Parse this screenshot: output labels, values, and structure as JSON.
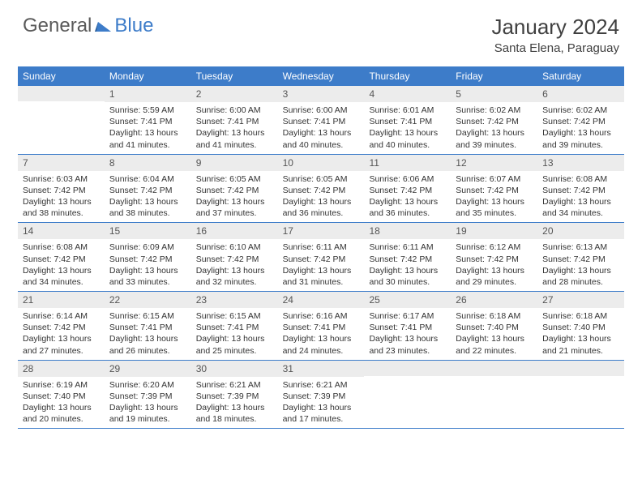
{
  "logo": {
    "text1": "General",
    "text2": "Blue"
  },
  "title": "January 2024",
  "location": "Santa Elena, Paraguay",
  "colors": {
    "header_bg": "#3d7cc9",
    "header_text": "#ffffff",
    "daynum_bg": "#ececec",
    "daynum_text": "#555555",
    "body_text": "#333333",
    "border": "#3d7cc9",
    "page_bg": "#ffffff",
    "logo_gray": "#5a5a5a",
    "logo_blue": "#3d7cc9"
  },
  "typography": {
    "title_fontsize": 26,
    "location_fontsize": 15,
    "dayhead_fontsize": 12,
    "daynum_fontsize": 12,
    "cell_fontsize": 10.5
  },
  "day_headers": [
    "Sunday",
    "Monday",
    "Tuesday",
    "Wednesday",
    "Thursday",
    "Friday",
    "Saturday"
  ],
  "weeks": [
    [
      {
        "day": "",
        "lines": []
      },
      {
        "day": "1",
        "lines": [
          "Sunrise: 5:59 AM",
          "Sunset: 7:41 PM",
          "Daylight: 13 hours and 41 minutes."
        ]
      },
      {
        "day": "2",
        "lines": [
          "Sunrise: 6:00 AM",
          "Sunset: 7:41 PM",
          "Daylight: 13 hours and 41 minutes."
        ]
      },
      {
        "day": "3",
        "lines": [
          "Sunrise: 6:00 AM",
          "Sunset: 7:41 PM",
          "Daylight: 13 hours and 40 minutes."
        ]
      },
      {
        "day": "4",
        "lines": [
          "Sunrise: 6:01 AM",
          "Sunset: 7:41 PM",
          "Daylight: 13 hours and 40 minutes."
        ]
      },
      {
        "day": "5",
        "lines": [
          "Sunrise: 6:02 AM",
          "Sunset: 7:42 PM",
          "Daylight: 13 hours and 39 minutes."
        ]
      },
      {
        "day": "6",
        "lines": [
          "Sunrise: 6:02 AM",
          "Sunset: 7:42 PM",
          "Daylight: 13 hours and 39 minutes."
        ]
      }
    ],
    [
      {
        "day": "7",
        "lines": [
          "Sunrise: 6:03 AM",
          "Sunset: 7:42 PM",
          "Daylight: 13 hours and 38 minutes."
        ]
      },
      {
        "day": "8",
        "lines": [
          "Sunrise: 6:04 AM",
          "Sunset: 7:42 PM",
          "Daylight: 13 hours and 38 minutes."
        ]
      },
      {
        "day": "9",
        "lines": [
          "Sunrise: 6:05 AM",
          "Sunset: 7:42 PM",
          "Daylight: 13 hours and 37 minutes."
        ]
      },
      {
        "day": "10",
        "lines": [
          "Sunrise: 6:05 AM",
          "Sunset: 7:42 PM",
          "Daylight: 13 hours and 36 minutes."
        ]
      },
      {
        "day": "11",
        "lines": [
          "Sunrise: 6:06 AM",
          "Sunset: 7:42 PM",
          "Daylight: 13 hours and 36 minutes."
        ]
      },
      {
        "day": "12",
        "lines": [
          "Sunrise: 6:07 AM",
          "Sunset: 7:42 PM",
          "Daylight: 13 hours and 35 minutes."
        ]
      },
      {
        "day": "13",
        "lines": [
          "Sunrise: 6:08 AM",
          "Sunset: 7:42 PM",
          "Daylight: 13 hours and 34 minutes."
        ]
      }
    ],
    [
      {
        "day": "14",
        "lines": [
          "Sunrise: 6:08 AM",
          "Sunset: 7:42 PM",
          "Daylight: 13 hours and 34 minutes."
        ]
      },
      {
        "day": "15",
        "lines": [
          "Sunrise: 6:09 AM",
          "Sunset: 7:42 PM",
          "Daylight: 13 hours and 33 minutes."
        ]
      },
      {
        "day": "16",
        "lines": [
          "Sunrise: 6:10 AM",
          "Sunset: 7:42 PM",
          "Daylight: 13 hours and 32 minutes."
        ]
      },
      {
        "day": "17",
        "lines": [
          "Sunrise: 6:11 AM",
          "Sunset: 7:42 PM",
          "Daylight: 13 hours and 31 minutes."
        ]
      },
      {
        "day": "18",
        "lines": [
          "Sunrise: 6:11 AM",
          "Sunset: 7:42 PM",
          "Daylight: 13 hours and 30 minutes."
        ]
      },
      {
        "day": "19",
        "lines": [
          "Sunrise: 6:12 AM",
          "Sunset: 7:42 PM",
          "Daylight: 13 hours and 29 minutes."
        ]
      },
      {
        "day": "20",
        "lines": [
          "Sunrise: 6:13 AM",
          "Sunset: 7:42 PM",
          "Daylight: 13 hours and 28 minutes."
        ]
      }
    ],
    [
      {
        "day": "21",
        "lines": [
          "Sunrise: 6:14 AM",
          "Sunset: 7:42 PM",
          "Daylight: 13 hours and 27 minutes."
        ]
      },
      {
        "day": "22",
        "lines": [
          "Sunrise: 6:15 AM",
          "Sunset: 7:41 PM",
          "Daylight: 13 hours and 26 minutes."
        ]
      },
      {
        "day": "23",
        "lines": [
          "Sunrise: 6:15 AM",
          "Sunset: 7:41 PM",
          "Daylight: 13 hours and 25 minutes."
        ]
      },
      {
        "day": "24",
        "lines": [
          "Sunrise: 6:16 AM",
          "Sunset: 7:41 PM",
          "Daylight: 13 hours and 24 minutes."
        ]
      },
      {
        "day": "25",
        "lines": [
          "Sunrise: 6:17 AM",
          "Sunset: 7:41 PM",
          "Daylight: 13 hours and 23 minutes."
        ]
      },
      {
        "day": "26",
        "lines": [
          "Sunrise: 6:18 AM",
          "Sunset: 7:40 PM",
          "Daylight: 13 hours and 22 minutes."
        ]
      },
      {
        "day": "27",
        "lines": [
          "Sunrise: 6:18 AM",
          "Sunset: 7:40 PM",
          "Daylight: 13 hours and 21 minutes."
        ]
      }
    ],
    [
      {
        "day": "28",
        "lines": [
          "Sunrise: 6:19 AM",
          "Sunset: 7:40 PM",
          "Daylight: 13 hours and 20 minutes."
        ]
      },
      {
        "day": "29",
        "lines": [
          "Sunrise: 6:20 AM",
          "Sunset: 7:39 PM",
          "Daylight: 13 hours and 19 minutes."
        ]
      },
      {
        "day": "30",
        "lines": [
          "Sunrise: 6:21 AM",
          "Sunset: 7:39 PM",
          "Daylight: 13 hours and 18 minutes."
        ]
      },
      {
        "day": "31",
        "lines": [
          "Sunrise: 6:21 AM",
          "Sunset: 7:39 PM",
          "Daylight: 13 hours and 17 minutes."
        ]
      },
      {
        "day": "",
        "lines": []
      },
      {
        "day": "",
        "lines": []
      },
      {
        "day": "",
        "lines": []
      }
    ]
  ]
}
